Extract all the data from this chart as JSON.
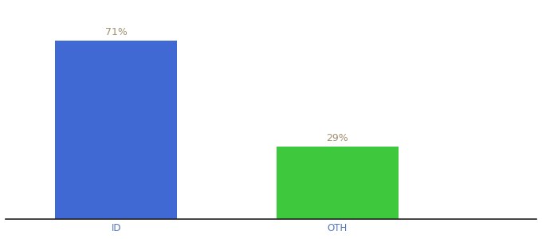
{
  "categories": [
    "ID",
    "OTH"
  ],
  "values": [
    71,
    29
  ],
  "bar_colors": [
    "#4169d4",
    "#3dc83d"
  ],
  "label_color": "#a09070",
  "label_fontsize": 9,
  "tick_fontsize": 8.5,
  "tick_color": "#5577bb",
  "background_color": "#ffffff",
  "ylim": [
    0,
    85
  ],
  "annotations": [
    "71%",
    "29%"
  ],
  "spine_color": "#222222"
}
